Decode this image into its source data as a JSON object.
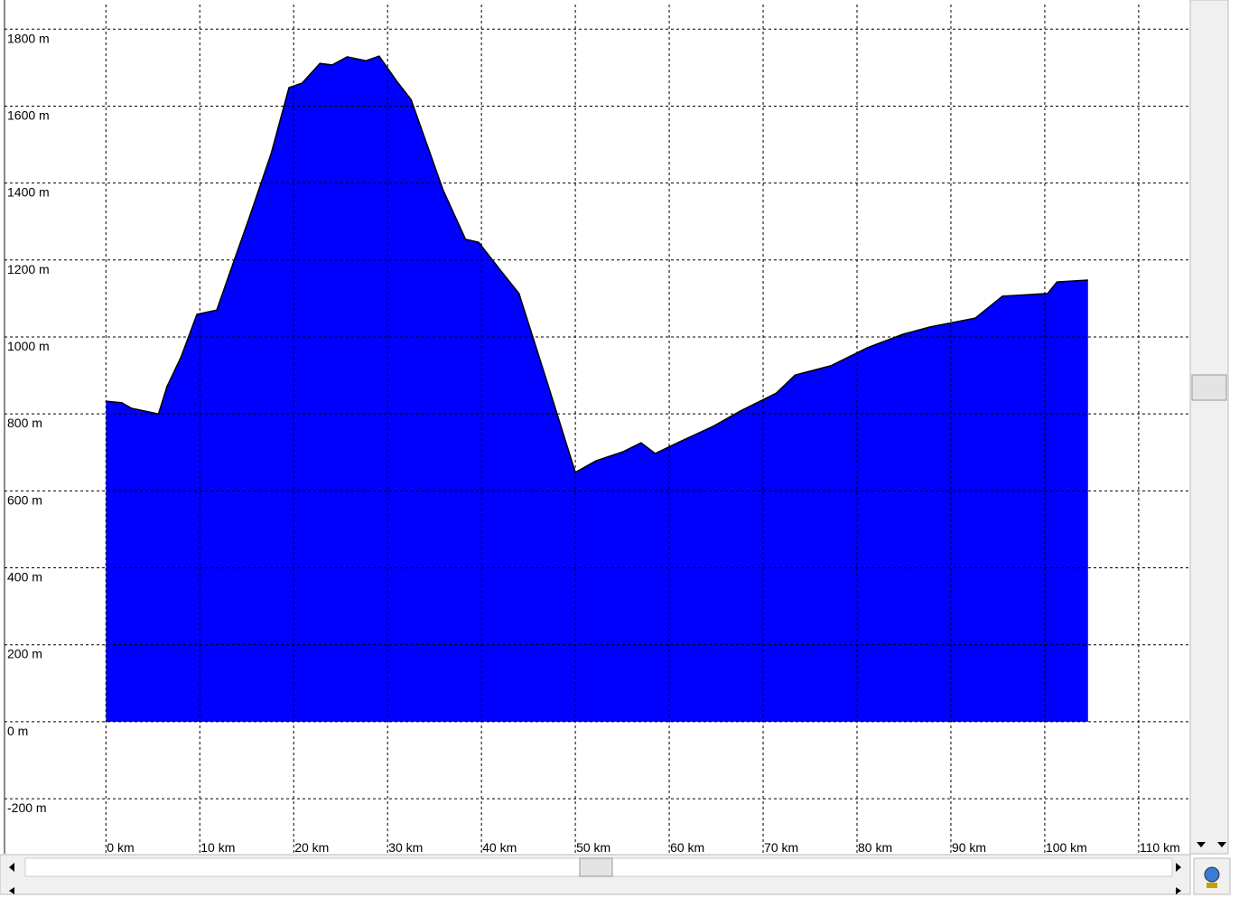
{
  "chart_data": {
    "type": "area",
    "color": "#0000ff",
    "grid": true,
    "x": [
      0,
      1.7,
      2.7,
      5.6,
      6.5,
      8,
      9.7,
      11.8,
      13.6,
      15.3,
      17.6,
      19.5,
      20.9,
      22.8,
      24.1,
      25.7,
      27.7,
      29.1,
      31,
      32.5,
      35.9,
      38.3,
      39.7,
      42.1,
      44,
      46.9,
      50,
      52.2,
      55.1,
      57,
      58.5,
      60.9,
      64.7,
      67.6,
      71.4,
      73.4,
      77.2,
      81.1,
      84.9,
      87.8,
      92.6,
      95.5,
      100.3,
      101.3,
      104.6
    ],
    "values": [
      833,
      829,
      815,
      800,
      871,
      948,
      1059,
      1070,
      1195,
      1312,
      1477,
      1648,
      1660,
      1711,
      1707,
      1728,
      1718,
      1730,
      1664,
      1617,
      1383,
      1254,
      1246,
      1171,
      1113,
      890,
      648,
      678,
      702,
      725,
      697,
      725,
      768,
      808,
      854,
      901,
      925,
      972,
      1007,
      1026,
      1049,
      1106,
      1113,
      1143,
      1148
    ],
    "xlim": [
      -10.8,
      115.3
    ],
    "ylim": [
      -343,
      1864
    ],
    "xticks": [
      {
        "value": 0,
        "label": "0 km"
      },
      {
        "value": 10,
        "label": "10 km"
      },
      {
        "value": 20,
        "label": "20 km"
      },
      {
        "value": 30,
        "label": "30 km"
      },
      {
        "value": 40,
        "label": "40 km"
      },
      {
        "value": 50,
        "label": "50 km"
      },
      {
        "value": 60,
        "label": "60 km"
      },
      {
        "value": 70,
        "label": "70 km"
      },
      {
        "value": 80,
        "label": "80 km"
      },
      {
        "value": 90,
        "label": "90 km"
      },
      {
        "value": 100,
        "label": "100 km"
      },
      {
        "value": 110,
        "label": "110 km"
      }
    ],
    "yticks": [
      {
        "value": -200,
        "label": "-200 m"
      },
      {
        "value": 0,
        "label": "0 m"
      },
      {
        "value": 200,
        "label": "200 m"
      },
      {
        "value": 400,
        "label": "400 m"
      },
      {
        "value": 600,
        "label": "600 m"
      },
      {
        "value": 800,
        "label": "800 m"
      },
      {
        "value": 1000,
        "label": "1000 m"
      },
      {
        "value": 1200,
        "label": "1200 m"
      },
      {
        "value": 1400,
        "label": "1400 m"
      },
      {
        "value": 1600,
        "label": "1600 m"
      },
      {
        "value": 1800,
        "label": "1800 m"
      }
    ]
  }
}
